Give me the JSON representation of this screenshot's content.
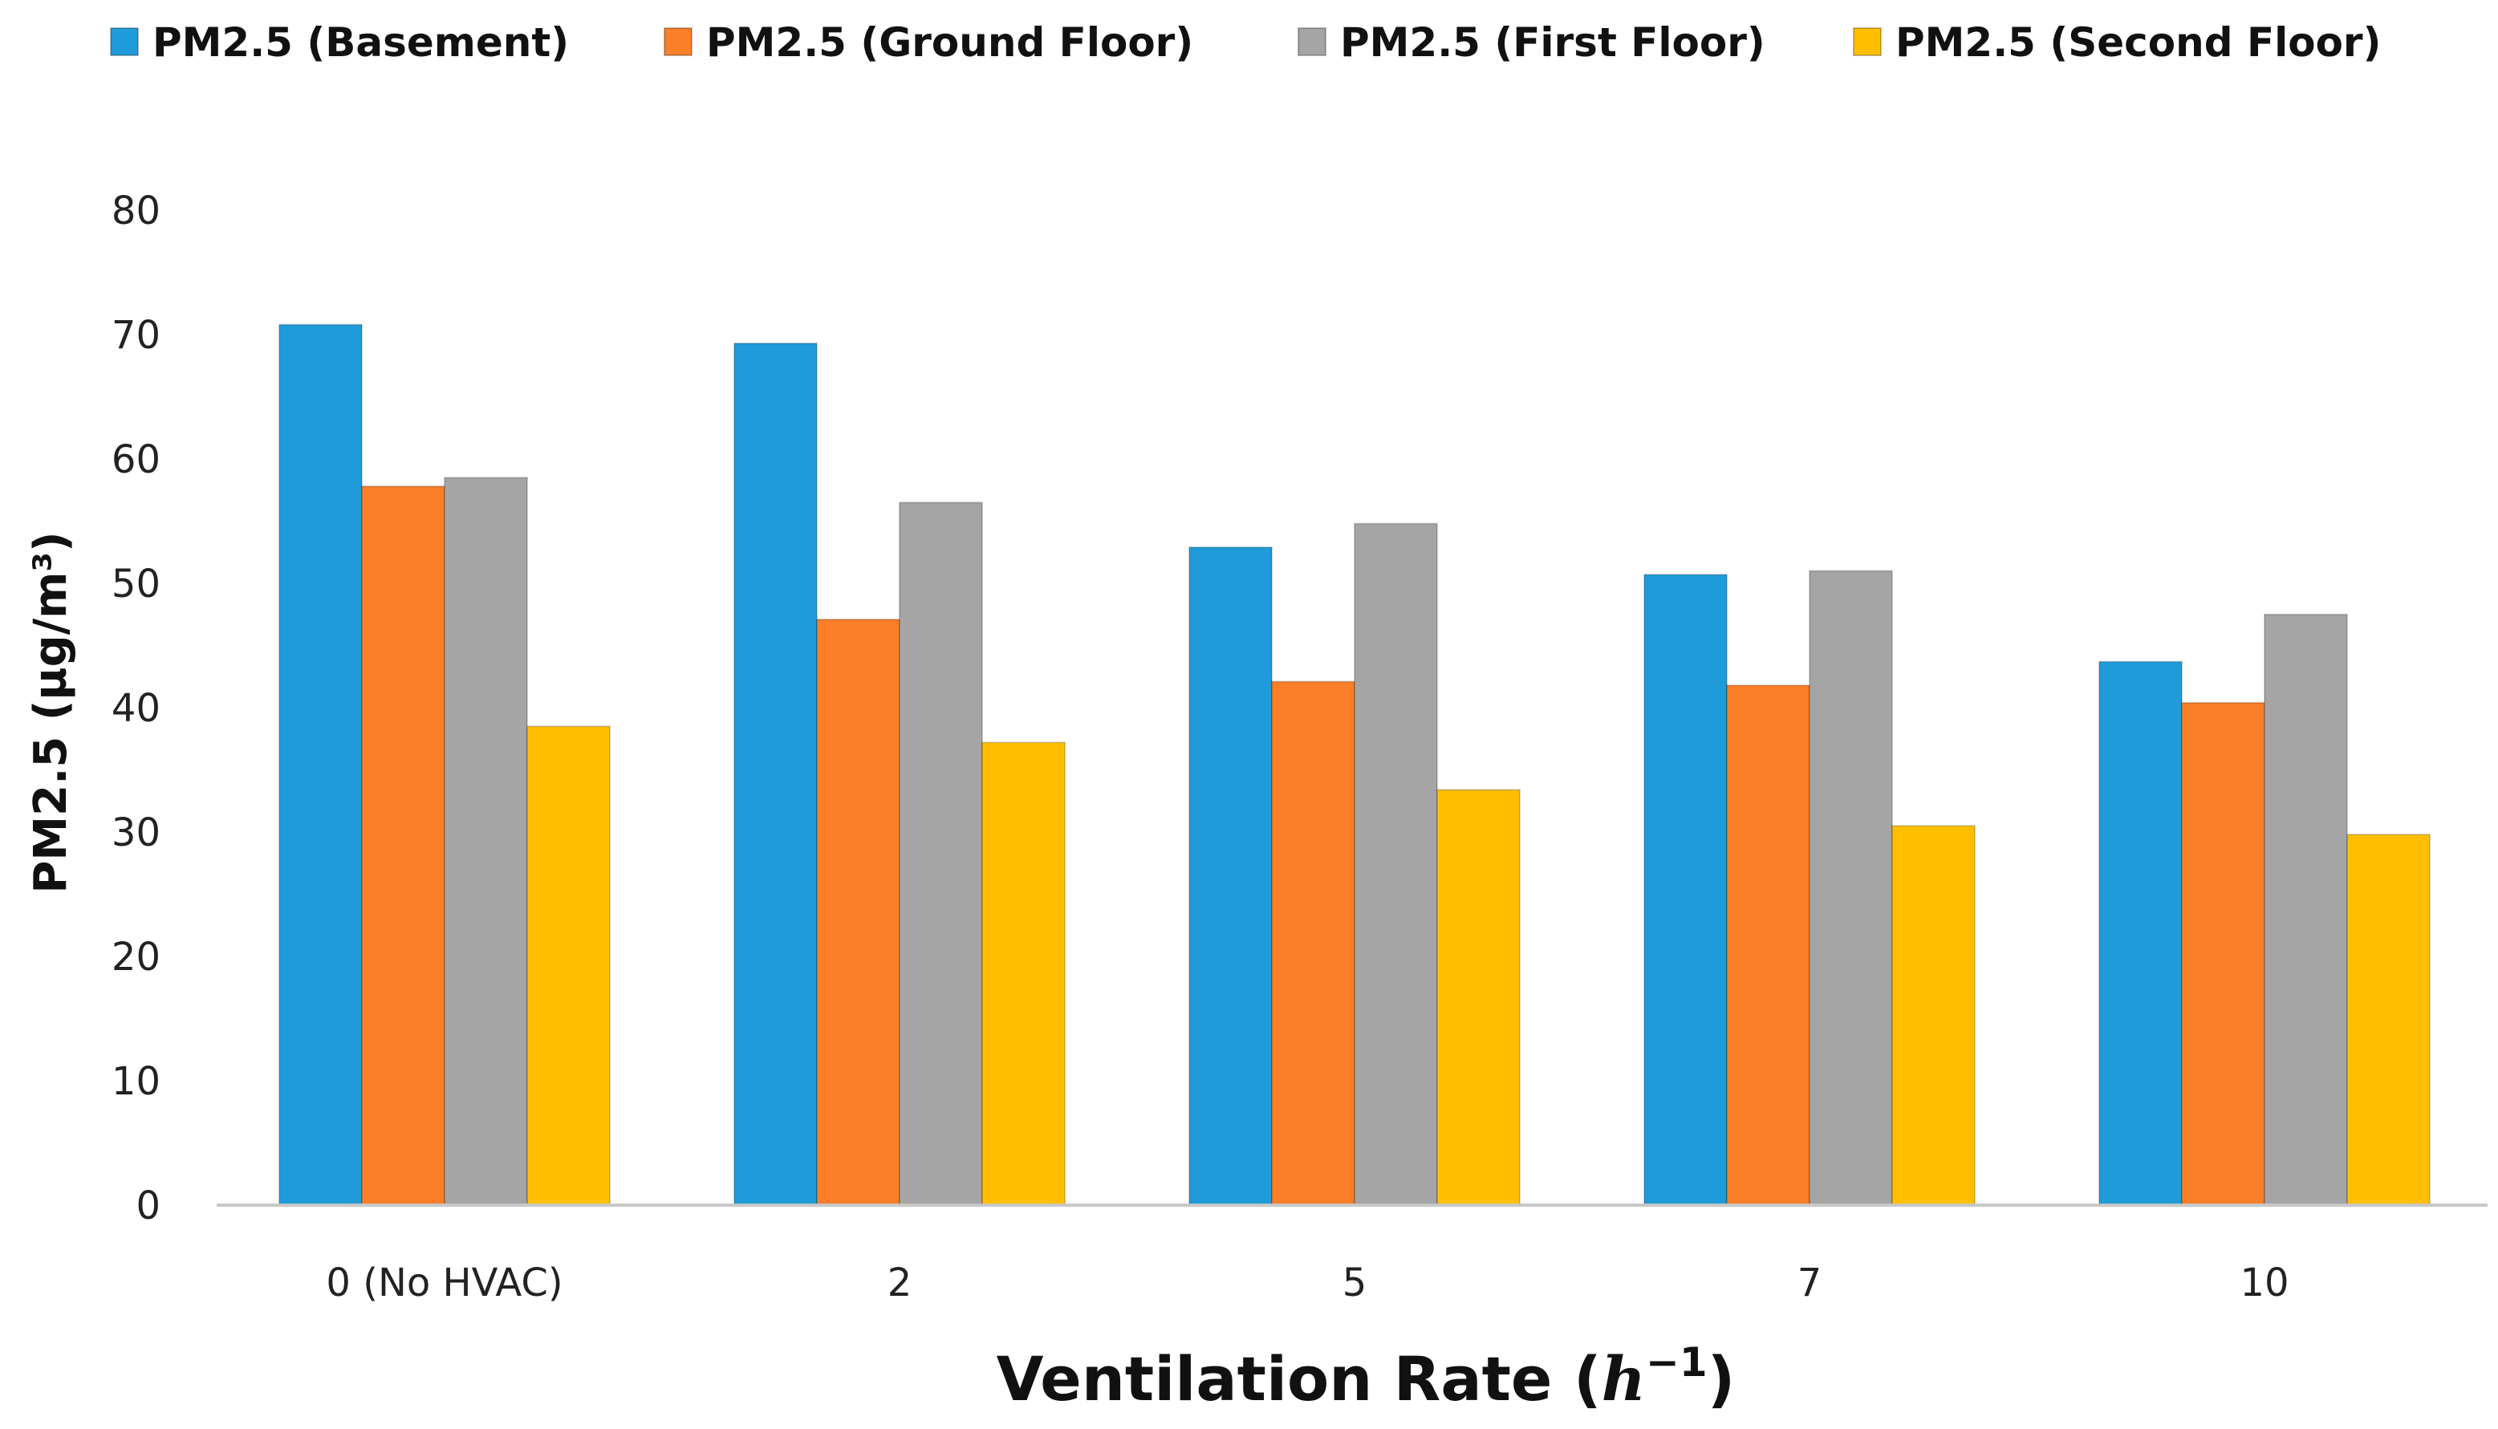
{
  "chart_data": {
    "type": "bar",
    "title": "",
    "xlabel": "Ventilation Rate",
    "xlabel_italic": "h",
    "xlabel_superscript": "−1",
    "ylabel": "PM2.5 (µg/m³)",
    "categories": [
      "0 (No HVAC)",
      "2",
      "5",
      "7",
      "10"
    ],
    "series": [
      {
        "name": "PM2.5 (Basement)",
        "color": "#1f9bd9",
        "values": [
          70.8,
          69.3,
          52.9,
          50.7,
          43.7
        ]
      },
      {
        "name": "PM2.5 (Ground Floor)",
        "color": "#fb7e29",
        "values": [
          57.8,
          47.1,
          42.1,
          41.8,
          40.4
        ]
      },
      {
        "name": "PM2.5 (First Floor)",
        "color": "#a5a5a5",
        "values": [
          58.5,
          56.5,
          54.8,
          51.0,
          47.5
        ]
      },
      {
        "name": "PM2.5 (Second Floor)",
        "color": "#ffbf00",
        "values": [
          38.5,
          37.2,
          33.4,
          30.5,
          29.8
        ]
      }
    ],
    "ylim": [
      0,
      80
    ],
    "yticks": [
      0,
      10,
      20,
      30,
      40,
      50,
      60,
      70,
      80
    ],
    "grid": false,
    "legend_position": "top"
  }
}
